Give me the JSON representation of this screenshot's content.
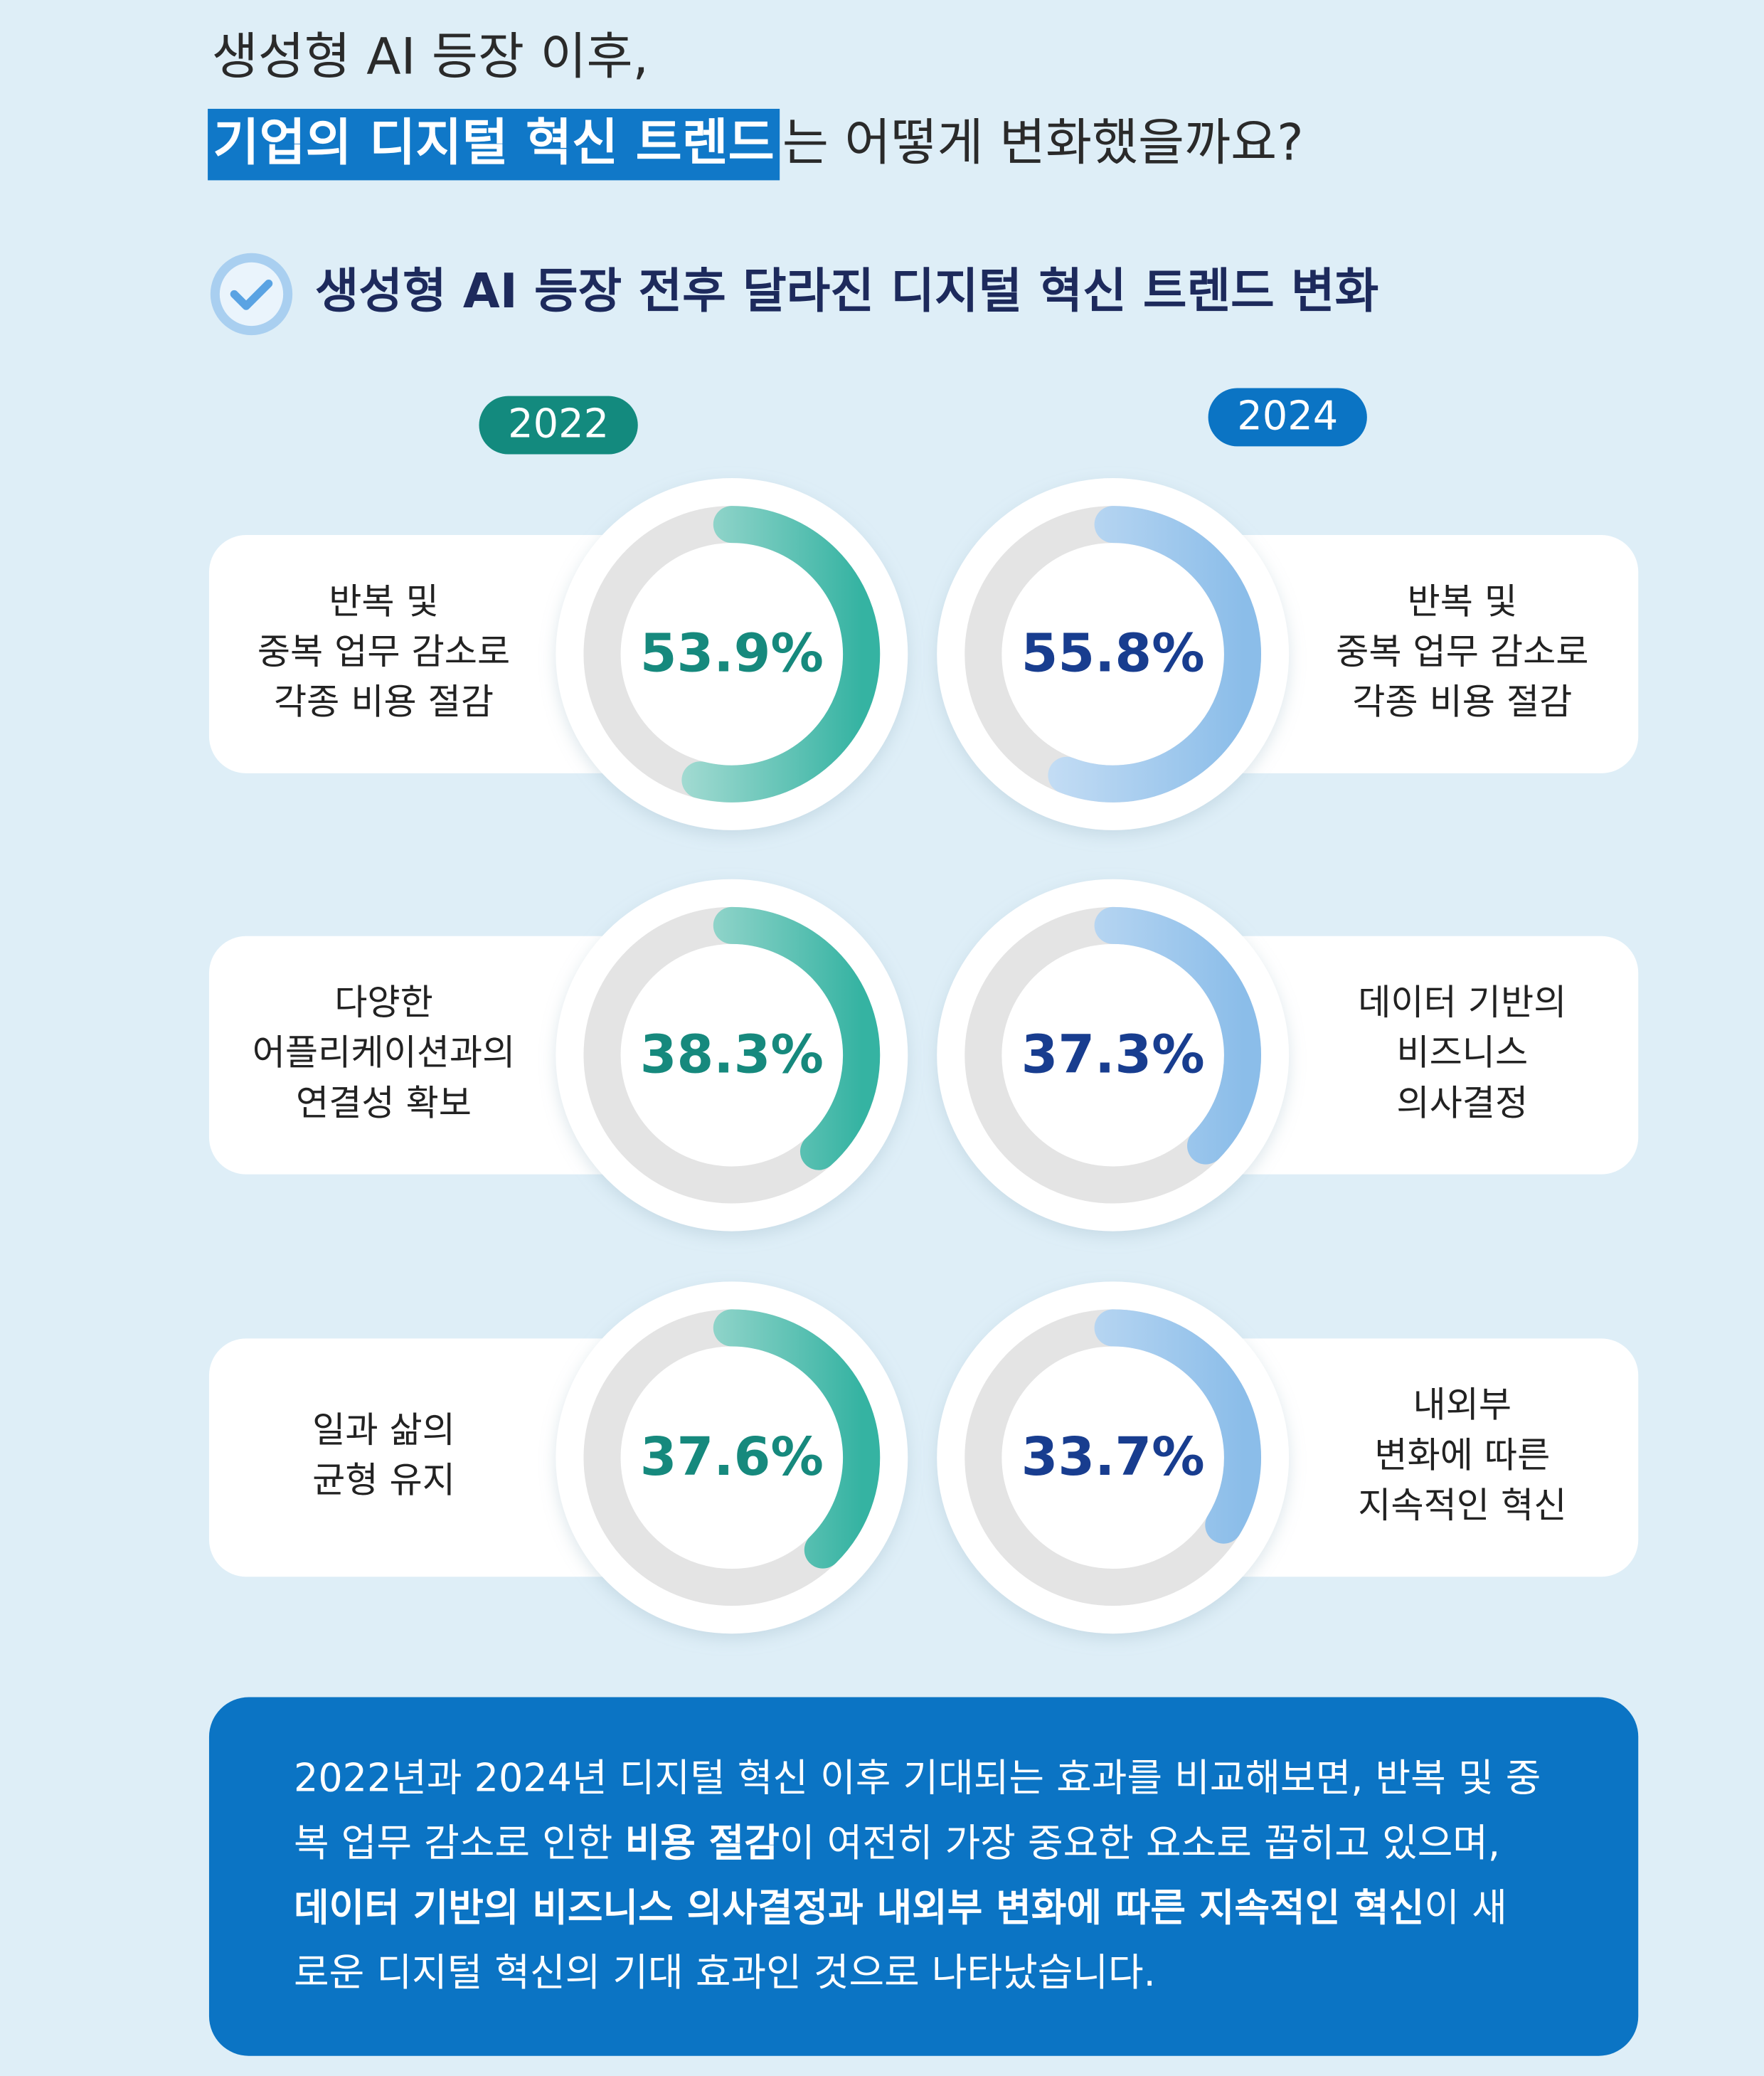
{
  "header": {
    "title_line1": "생성형 AI 등장 이후,",
    "title_highlight": "기업의 디지털 혁신 트렌드",
    "title_rest": "는 어떻게 변화했을까요?"
  },
  "section_title": "생성형 AI 등장 전후 달라진 디지털 혁신 트렌드 변화",
  "columns": [
    {
      "year": "2022",
      "color": "#138a7e",
      "items": [
        {
          "label": [
            "반복 및",
            "중복 업무 감소로",
            "각종 비용 절감"
          ],
          "value": 53.9,
          "value_label": "53.9%"
        },
        {
          "label": [
            "다양한",
            "어플리케이션과의",
            "연결성 확보"
          ],
          "value": 38.3,
          "value_label": "38.3%"
        },
        {
          "label": [
            "일과 삶의",
            "균형 유지"
          ],
          "value": 37.6,
          "value_label": "37.6%"
        }
      ]
    },
    {
      "year": "2024",
      "color": "#0b74c4",
      "items": [
        {
          "label": [
            "반복 및",
            "중복 업무 감소로",
            "각종 비용 절감"
          ],
          "value": 55.8,
          "value_label": "55.8%"
        },
        {
          "label": [
            "데이터 기반의",
            "비즈니스",
            "의사결정"
          ],
          "value": 37.3,
          "value_label": "37.3%"
        },
        {
          "label": [
            "내외부",
            "변화에 따른",
            "지속적인 혁신"
          ],
          "value": 33.7,
          "value_label": "33.7%"
        }
      ]
    }
  ],
  "summary": [
    [
      {
        "text": "2022년과 2024년 디지털 혁신 이후 기대되는 효과를 비교해보면, 반복 및 중",
        "bold": false
      }
    ],
    [
      {
        "text": "복 업무 감소로 인한 ",
        "bold": false
      },
      {
        "text": "비용 절감",
        "bold": true
      },
      {
        "text": "이 여전히 가장 중요한 요소로 꼽히고 있으며,",
        "bold": false
      }
    ],
    [
      {
        "text": "데이터 기반의 비즈니스 의사결정과 내외부 변화에 따른 지속적인 혁신",
        "bold": true
      },
      {
        "text": "이 새",
        "bold": false
      }
    ],
    [
      {
        "text": "로운 디지털 혁신의 기대 효과인 것으로 나타났습니다.",
        "bold": false
      }
    ]
  ]
}
